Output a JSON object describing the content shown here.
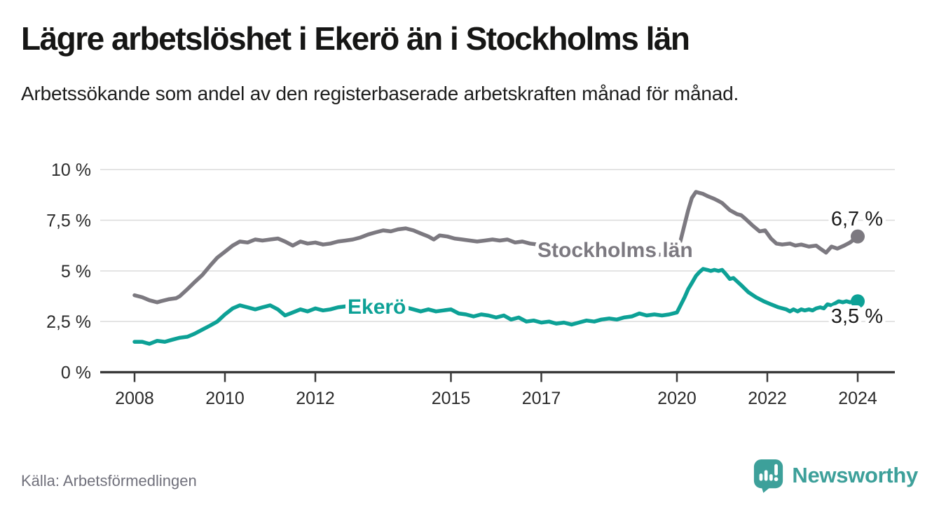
{
  "header": {
    "title": "Lägre arbetslöshet i Ekerö än i Stockholms län",
    "subtitle": "Arbetssökande som andel av den registerbaserade arbetskraften månad för månad."
  },
  "chart_data": {
    "type": "line",
    "unit": "%",
    "xlim": [
      2007.3,
      2024.8
    ],
    "ylim": [
      0,
      10
    ],
    "grid": "horizontal",
    "y_ticks": [
      {
        "v": 0,
        "label": "0 %"
      },
      {
        "v": 2.5,
        "label": "2,5 %"
      },
      {
        "v": 5,
        "label": "5 %"
      },
      {
        "v": 7.5,
        "label": "7,5 %"
      },
      {
        "v": 10,
        "label": "10 %"
      }
    ],
    "x_ticks": [
      {
        "v": 2008,
        "label": "2008"
      },
      {
        "v": 2010,
        "label": "2010"
      },
      {
        "v": 2012,
        "label": "2012"
      },
      {
        "v": 2015,
        "label": "2015"
      },
      {
        "v": 2017,
        "label": "2017"
      },
      {
        "v": 2020,
        "label": "2020"
      },
      {
        "v": 2022,
        "label": "2022"
      },
      {
        "v": 2024,
        "label": "2024"
      }
    ],
    "series": [
      {
        "name": "Stockholms län",
        "color": "#7c7980",
        "end_label": "6,7 %",
        "end_value": 6.7,
        "points": [
          [
            2008.0,
            3.8
          ],
          [
            2008.17,
            3.7
          ],
          [
            2008.33,
            3.55
          ],
          [
            2008.5,
            3.45
          ],
          [
            2008.58,
            3.5
          ],
          [
            2008.75,
            3.6
          ],
          [
            2008.92,
            3.65
          ],
          [
            2009.0,
            3.75
          ],
          [
            2009.17,
            4.1
          ],
          [
            2009.33,
            4.45
          ],
          [
            2009.5,
            4.8
          ],
          [
            2009.67,
            5.25
          ],
          [
            2009.83,
            5.65
          ],
          [
            2010.0,
            5.95
          ],
          [
            2010.17,
            6.25
          ],
          [
            2010.33,
            6.45
          ],
          [
            2010.5,
            6.4
          ],
          [
            2010.67,
            6.55
          ],
          [
            2010.83,
            6.5
          ],
          [
            2011.0,
            6.55
          ],
          [
            2011.17,
            6.6
          ],
          [
            2011.33,
            6.45
          ],
          [
            2011.5,
            6.25
          ],
          [
            2011.67,
            6.45
          ],
          [
            2011.83,
            6.35
          ],
          [
            2012.0,
            6.4
          ],
          [
            2012.17,
            6.3
          ],
          [
            2012.33,
            6.35
          ],
          [
            2012.5,
            6.45
          ],
          [
            2012.67,
            6.5
          ],
          [
            2012.83,
            6.55
          ],
          [
            2013.0,
            6.65
          ],
          [
            2013.17,
            6.8
          ],
          [
            2013.33,
            6.9
          ],
          [
            2013.5,
            7.0
          ],
          [
            2013.67,
            6.95
          ],
          [
            2013.83,
            7.05
          ],
          [
            2014.0,
            7.1
          ],
          [
            2014.17,
            7.0
          ],
          [
            2014.33,
            6.85
          ],
          [
            2014.5,
            6.7
          ],
          [
            2014.62,
            6.55
          ],
          [
            2014.75,
            6.75
          ],
          [
            2014.92,
            6.7
          ],
          [
            2015.08,
            6.6
          ],
          [
            2015.25,
            6.55
          ],
          [
            2015.42,
            6.5
          ],
          [
            2015.58,
            6.45
          ],
          [
            2015.75,
            6.5
          ],
          [
            2015.92,
            6.55
          ],
          [
            2016.08,
            6.5
          ],
          [
            2016.25,
            6.55
          ],
          [
            2016.42,
            6.4
          ],
          [
            2016.58,
            6.45
          ],
          [
            2016.75,
            6.35
          ],
          [
            2016.92,
            6.3
          ],
          [
            2017.25,
            6.2
          ],
          [
            2017.58,
            6.15
          ],
          [
            2017.92,
            6.1
          ],
          [
            2018.25,
            6.05
          ],
          [
            2018.58,
            6.0
          ],
          [
            2018.92,
            5.95
          ],
          [
            2019.25,
            5.85
          ],
          [
            2019.58,
            5.8
          ],
          [
            2019.92,
            5.85
          ],
          [
            2020.0,
            5.9
          ],
          [
            2020.08,
            6.5
          ],
          [
            2020.17,
            7.3
          ],
          [
            2020.25,
            8.0
          ],
          [
            2020.33,
            8.6
          ],
          [
            2020.42,
            8.9
          ],
          [
            2020.5,
            8.85
          ],
          [
            2020.58,
            8.8
          ],
          [
            2020.67,
            8.7
          ],
          [
            2020.83,
            8.55
          ],
          [
            2020.92,
            8.45
          ],
          [
            2021.0,
            8.35
          ],
          [
            2021.17,
            8.0
          ],
          [
            2021.33,
            7.8
          ],
          [
            2021.42,
            7.75
          ],
          [
            2021.5,
            7.6
          ],
          [
            2021.67,
            7.25
          ],
          [
            2021.83,
            6.95
          ],
          [
            2021.95,
            7.0
          ],
          [
            2022.08,
            6.6
          ],
          [
            2022.2,
            6.35
          ],
          [
            2022.33,
            6.3
          ],
          [
            2022.5,
            6.35
          ],
          [
            2022.62,
            6.25
          ],
          [
            2022.75,
            6.3
          ],
          [
            2022.92,
            6.2
          ],
          [
            2023.08,
            6.25
          ],
          [
            2023.17,
            6.1
          ],
          [
            2023.3,
            5.9
          ],
          [
            2023.42,
            6.2
          ],
          [
            2023.55,
            6.1
          ],
          [
            2023.7,
            6.25
          ],
          [
            2023.83,
            6.4
          ],
          [
            2024.0,
            6.7
          ]
        ]
      },
      {
        "name": "Ekerö",
        "color": "#0da196",
        "end_label": "3,5 %",
        "end_value": 3.5,
        "points": [
          [
            2008.0,
            1.5
          ],
          [
            2008.17,
            1.5
          ],
          [
            2008.25,
            1.45
          ],
          [
            2008.33,
            1.4
          ],
          [
            2008.5,
            1.55
          ],
          [
            2008.67,
            1.5
          ],
          [
            2008.83,
            1.6
          ],
          [
            2009.0,
            1.7
          ],
          [
            2009.17,
            1.75
          ],
          [
            2009.33,
            1.9
          ],
          [
            2009.5,
            2.1
          ],
          [
            2009.67,
            2.3
          ],
          [
            2009.83,
            2.5
          ],
          [
            2010.0,
            2.85
          ],
          [
            2010.17,
            3.15
          ],
          [
            2010.33,
            3.3
          ],
          [
            2010.5,
            3.2
          ],
          [
            2010.67,
            3.1
          ],
          [
            2010.83,
            3.2
          ],
          [
            2011.0,
            3.3
          ],
          [
            2011.17,
            3.1
          ],
          [
            2011.33,
            2.8
          ],
          [
            2011.5,
            2.95
          ],
          [
            2011.67,
            3.1
          ],
          [
            2011.83,
            3.0
          ],
          [
            2012.0,
            3.15
          ],
          [
            2012.17,
            3.05
          ],
          [
            2012.33,
            3.1
          ],
          [
            2012.5,
            3.2
          ],
          [
            2012.67,
            3.25
          ],
          [
            2012.83,
            3.25
          ],
          [
            2013.0,
            3.3
          ],
          [
            2013.25,
            3.25
          ],
          [
            2013.5,
            3.3
          ],
          [
            2013.75,
            3.2
          ],
          [
            2014.0,
            3.2
          ],
          [
            2014.17,
            3.1
          ],
          [
            2014.33,
            3.0
          ],
          [
            2014.5,
            3.1
          ],
          [
            2014.67,
            3.0
          ],
          [
            2014.83,
            3.05
          ],
          [
            2015.0,
            3.1
          ],
          [
            2015.17,
            2.9
          ],
          [
            2015.33,
            2.85
          ],
          [
            2015.5,
            2.75
          ],
          [
            2015.67,
            2.85
          ],
          [
            2015.83,
            2.8
          ],
          [
            2016.0,
            2.7
          ],
          [
            2016.17,
            2.8
          ],
          [
            2016.33,
            2.6
          ],
          [
            2016.5,
            2.7
          ],
          [
            2016.67,
            2.5
          ],
          [
            2016.83,
            2.55
          ],
          [
            2017.0,
            2.45
          ],
          [
            2017.17,
            2.5
          ],
          [
            2017.33,
            2.4
          ],
          [
            2017.5,
            2.45
          ],
          [
            2017.67,
            2.35
          ],
          [
            2017.83,
            2.45
          ],
          [
            2018.0,
            2.55
          ],
          [
            2018.17,
            2.5
          ],
          [
            2018.33,
            2.6
          ],
          [
            2018.5,
            2.65
          ],
          [
            2018.67,
            2.6
          ],
          [
            2018.83,
            2.7
          ],
          [
            2019.0,
            2.75
          ],
          [
            2019.17,
            2.9
          ],
          [
            2019.33,
            2.8
          ],
          [
            2019.5,
            2.85
          ],
          [
            2019.67,
            2.8
          ],
          [
            2019.83,
            2.85
          ],
          [
            2020.0,
            2.95
          ],
          [
            2020.08,
            3.3
          ],
          [
            2020.17,
            3.7
          ],
          [
            2020.25,
            4.1
          ],
          [
            2020.33,
            4.4
          ],
          [
            2020.42,
            4.75
          ],
          [
            2020.5,
            4.95
          ],
          [
            2020.58,
            5.1
          ],
          [
            2020.67,
            5.05
          ],
          [
            2020.75,
            5.0
          ],
          [
            2020.83,
            5.05
          ],
          [
            2020.92,
            5.0
          ],
          [
            2021.0,
            5.05
          ],
          [
            2021.08,
            4.85
          ],
          [
            2021.17,
            4.6
          ],
          [
            2021.25,
            4.65
          ],
          [
            2021.42,
            4.3
          ],
          [
            2021.58,
            3.95
          ],
          [
            2021.75,
            3.7
          ],
          [
            2021.92,
            3.5
          ],
          [
            2022.08,
            3.35
          ],
          [
            2022.25,
            3.2
          ],
          [
            2022.42,
            3.1
          ],
          [
            2022.5,
            3.0
          ],
          [
            2022.58,
            3.1
          ],
          [
            2022.67,
            3.0
          ],
          [
            2022.75,
            3.1
          ],
          [
            2022.83,
            3.05
          ],
          [
            2022.92,
            3.1
          ],
          [
            2023.0,
            3.05
          ],
          [
            2023.08,
            3.15
          ],
          [
            2023.17,
            3.2
          ],
          [
            2023.25,
            3.15
          ],
          [
            2023.33,
            3.35
          ],
          [
            2023.42,
            3.3
          ],
          [
            2023.5,
            3.4
          ],
          [
            2023.58,
            3.5
          ],
          [
            2023.67,
            3.45
          ],
          [
            2023.75,
            3.5
          ],
          [
            2023.83,
            3.45
          ],
          [
            2023.92,
            3.5
          ],
          [
            2024.0,
            3.5
          ]
        ]
      }
    ]
  },
  "footer": {
    "source": "Källa: Arbetsförmedlingen",
    "brand": "Newsworthy"
  },
  "colors": {
    "line_gray": "#7c7980",
    "line_teal": "#0da196",
    "brand_teal": "#3da09a",
    "grid": "#dbdbdb",
    "axis": "#3a3a3a"
  }
}
